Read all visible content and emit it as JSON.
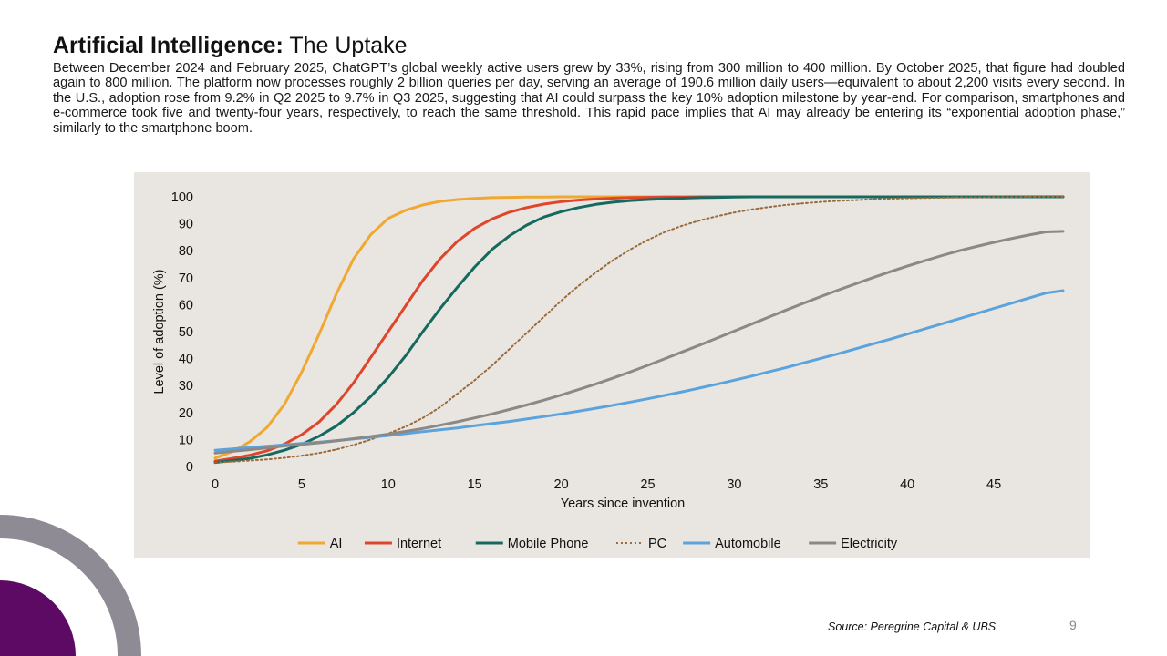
{
  "slide": {
    "title_bold": "Artificial Intelligence:",
    "title_rest": " The Uptake",
    "description": "Between December 2024 and February 2025, ChatGPT’s global weekly active users grew by 33%, rising from 300 million to 400 million. By October 2025, that figure had doubled again to 800 million. The platform now processes roughly 2 billion queries per day, serving an average of 190.6 million daily users—equivalent to about 2,200 visits every second. In the U.S., adoption rose from 9.2% in Q2 2025 to 9.7% in Q3 2025, suggesting that AI could surpass the key 10% adoption milestone by year-end. For comparison, smartphones and e-commerce took five and twenty-four years, respectively, to reach the same threshold. This rapid pace implies that AI may already be entering its “exponential adoption phase,” similarly to the smartphone boom.",
    "source": "Source: Peregrine Capital & UBS",
    "page_number": "9",
    "colors": {
      "accent_purple": "#5c0a63",
      "ring_gray": "#8e8b95",
      "chart_bg": "#e9e6e1"
    }
  },
  "chart_data": {
    "type": "line",
    "title": "",
    "xlabel": "Years since invention",
    "ylabel": "Level of adoption (%)",
    "xlim": [
      0,
      49
    ],
    "ylim": [
      0,
      100
    ],
    "xticks": [
      "0",
      "5",
      "10",
      "15",
      "20",
      "25",
      "30",
      "35",
      "40",
      "45"
    ],
    "yticks": [
      "0",
      "10",
      "20",
      "30",
      "40",
      "50",
      "60",
      "70",
      "80",
      "90",
      "100"
    ],
    "grid": false,
    "legend_position": "bottom",
    "x": [
      0,
      1,
      2,
      3,
      4,
      5,
      6,
      7,
      8,
      9,
      10,
      11,
      12,
      13,
      14,
      15,
      16,
      17,
      18,
      19,
      20,
      21,
      22,
      23,
      24,
      25,
      26,
      27,
      28,
      29,
      30,
      31,
      32,
      33,
      34,
      35,
      36,
      37,
      38,
      39,
      40,
      41,
      42,
      43,
      44,
      45,
      46,
      47,
      48,
      49
    ],
    "series": [
      {
        "name": "AI",
        "color": "#f0a830",
        "dashed": false,
        "values": [
          3.1,
          5.5,
          9.2,
          14.5,
          23,
          35,
          49,
          64,
          77,
          86,
          92,
          95,
          97,
          98.3,
          99,
          99.4,
          99.7,
          99.8,
          99.9,
          99.9,
          100,
          100,
          100,
          100,
          100,
          100,
          100,
          100,
          100,
          100,
          100,
          100,
          100,
          100,
          100,
          100,
          100,
          100,
          100,
          100,
          100,
          100,
          100,
          100,
          100,
          100,
          100,
          100,
          100,
          100
        ]
      },
      {
        "name": "Internet",
        "color": "#e0452b",
        "dashed": false,
        "values": [
          2,
          3,
          4.2,
          5.8,
          8.3,
          11.8,
          16.5,
          23,
          31,
          40.5,
          50,
          59.5,
          69,
          77,
          83.5,
          88.3,
          91.8,
          94.3,
          96,
          97.3,
          98.2,
          98.8,
          99.2,
          99.5,
          99.7,
          99.8,
          99.9,
          99.9,
          100,
          100,
          100,
          100,
          100,
          100,
          100,
          100,
          100,
          100,
          100,
          100,
          100,
          100,
          100,
          100,
          100,
          100,
          100,
          100,
          100,
          100
        ]
      },
      {
        "name": "Mobile Phone",
        "color": "#16695e",
        "dashed": false,
        "values": [
          1.5,
          2.2,
          3,
          4.3,
          6,
          8.2,
          11.2,
          15,
          20,
          26,
          33,
          41,
          50,
          58.5,
          66.5,
          74,
          80.5,
          85.5,
          89.5,
          92.5,
          94.5,
          96,
          97.2,
          98,
          98.6,
          99,
          99.3,
          99.5,
          99.7,
          99.8,
          99.9,
          100,
          100,
          100,
          100,
          100,
          100,
          100,
          100,
          100,
          100,
          100,
          100,
          100,
          100,
          100,
          100,
          100,
          100,
          100
        ]
      },
      {
        "name": "PC",
        "color": "#9a6a3a",
        "dashed": true,
        "values": [
          1.5,
          1.8,
          2.2,
          2.6,
          3.2,
          4,
          5,
          6.3,
          8,
          10,
          12.2,
          14.8,
          18,
          22,
          27,
          32,
          37.5,
          43.5,
          49.5,
          55.5,
          61.5,
          67,
          72,
          76.5,
          80.5,
          84,
          87,
          89.3,
          91.2,
          92.8,
          94.2,
          95.3,
          96.2,
          97,
          97.6,
          98.1,
          98.5,
          98.8,
          99.1,
          99.3,
          99.5,
          99.6,
          99.7,
          99.8,
          99.8,
          99.9,
          99.9,
          100,
          100,
          100
        ]
      },
      {
        "name": "Automobile",
        "color": "#5ba3dc",
        "dashed": false,
        "values": [
          6,
          6.5,
          7,
          7.5,
          8,
          8.5,
          9,
          9.6,
          10.2,
          10.8,
          11.5,
          12.2,
          12.9,
          13.6,
          14.3,
          15.1,
          15.9,
          16.7,
          17.6,
          18.5,
          19.5,
          20.5,
          21.6,
          22.7,
          23.9,
          25.1,
          26.4,
          27.7,
          29.1,
          30.5,
          32,
          33.5,
          35.1,
          36.7,
          38.4,
          40.1,
          41.8,
          43.6,
          45.4,
          47.2,
          49.1,
          51,
          52.9,
          54.8,
          56.7,
          58.6,
          60.5,
          62.4,
          64.3,
          65.2
        ]
      },
      {
        "name": "Electricity",
        "color": "#8c8886",
        "dashed": false,
        "values": [
          5,
          5.6,
          6.2,
          6.9,
          7.6,
          8.2,
          8.8,
          9.5,
          10.3,
          11.1,
          12,
          13,
          14.1,
          15.3,
          16.6,
          18,
          19.5,
          21.1,
          22.8,
          24.6,
          26.5,
          28.5,
          30.6,
          32.8,
          35.1,
          37.5,
          40,
          42.5,
          45,
          47.6,
          50.2,
          52.8,
          55.4,
          58,
          60.5,
          63,
          65.4,
          67.7,
          70,
          72.2,
          74.3,
          76.3,
          78.2,
          80,
          81.6,
          83.1,
          84.5,
          85.8,
          87,
          87.2
        ]
      }
    ]
  }
}
